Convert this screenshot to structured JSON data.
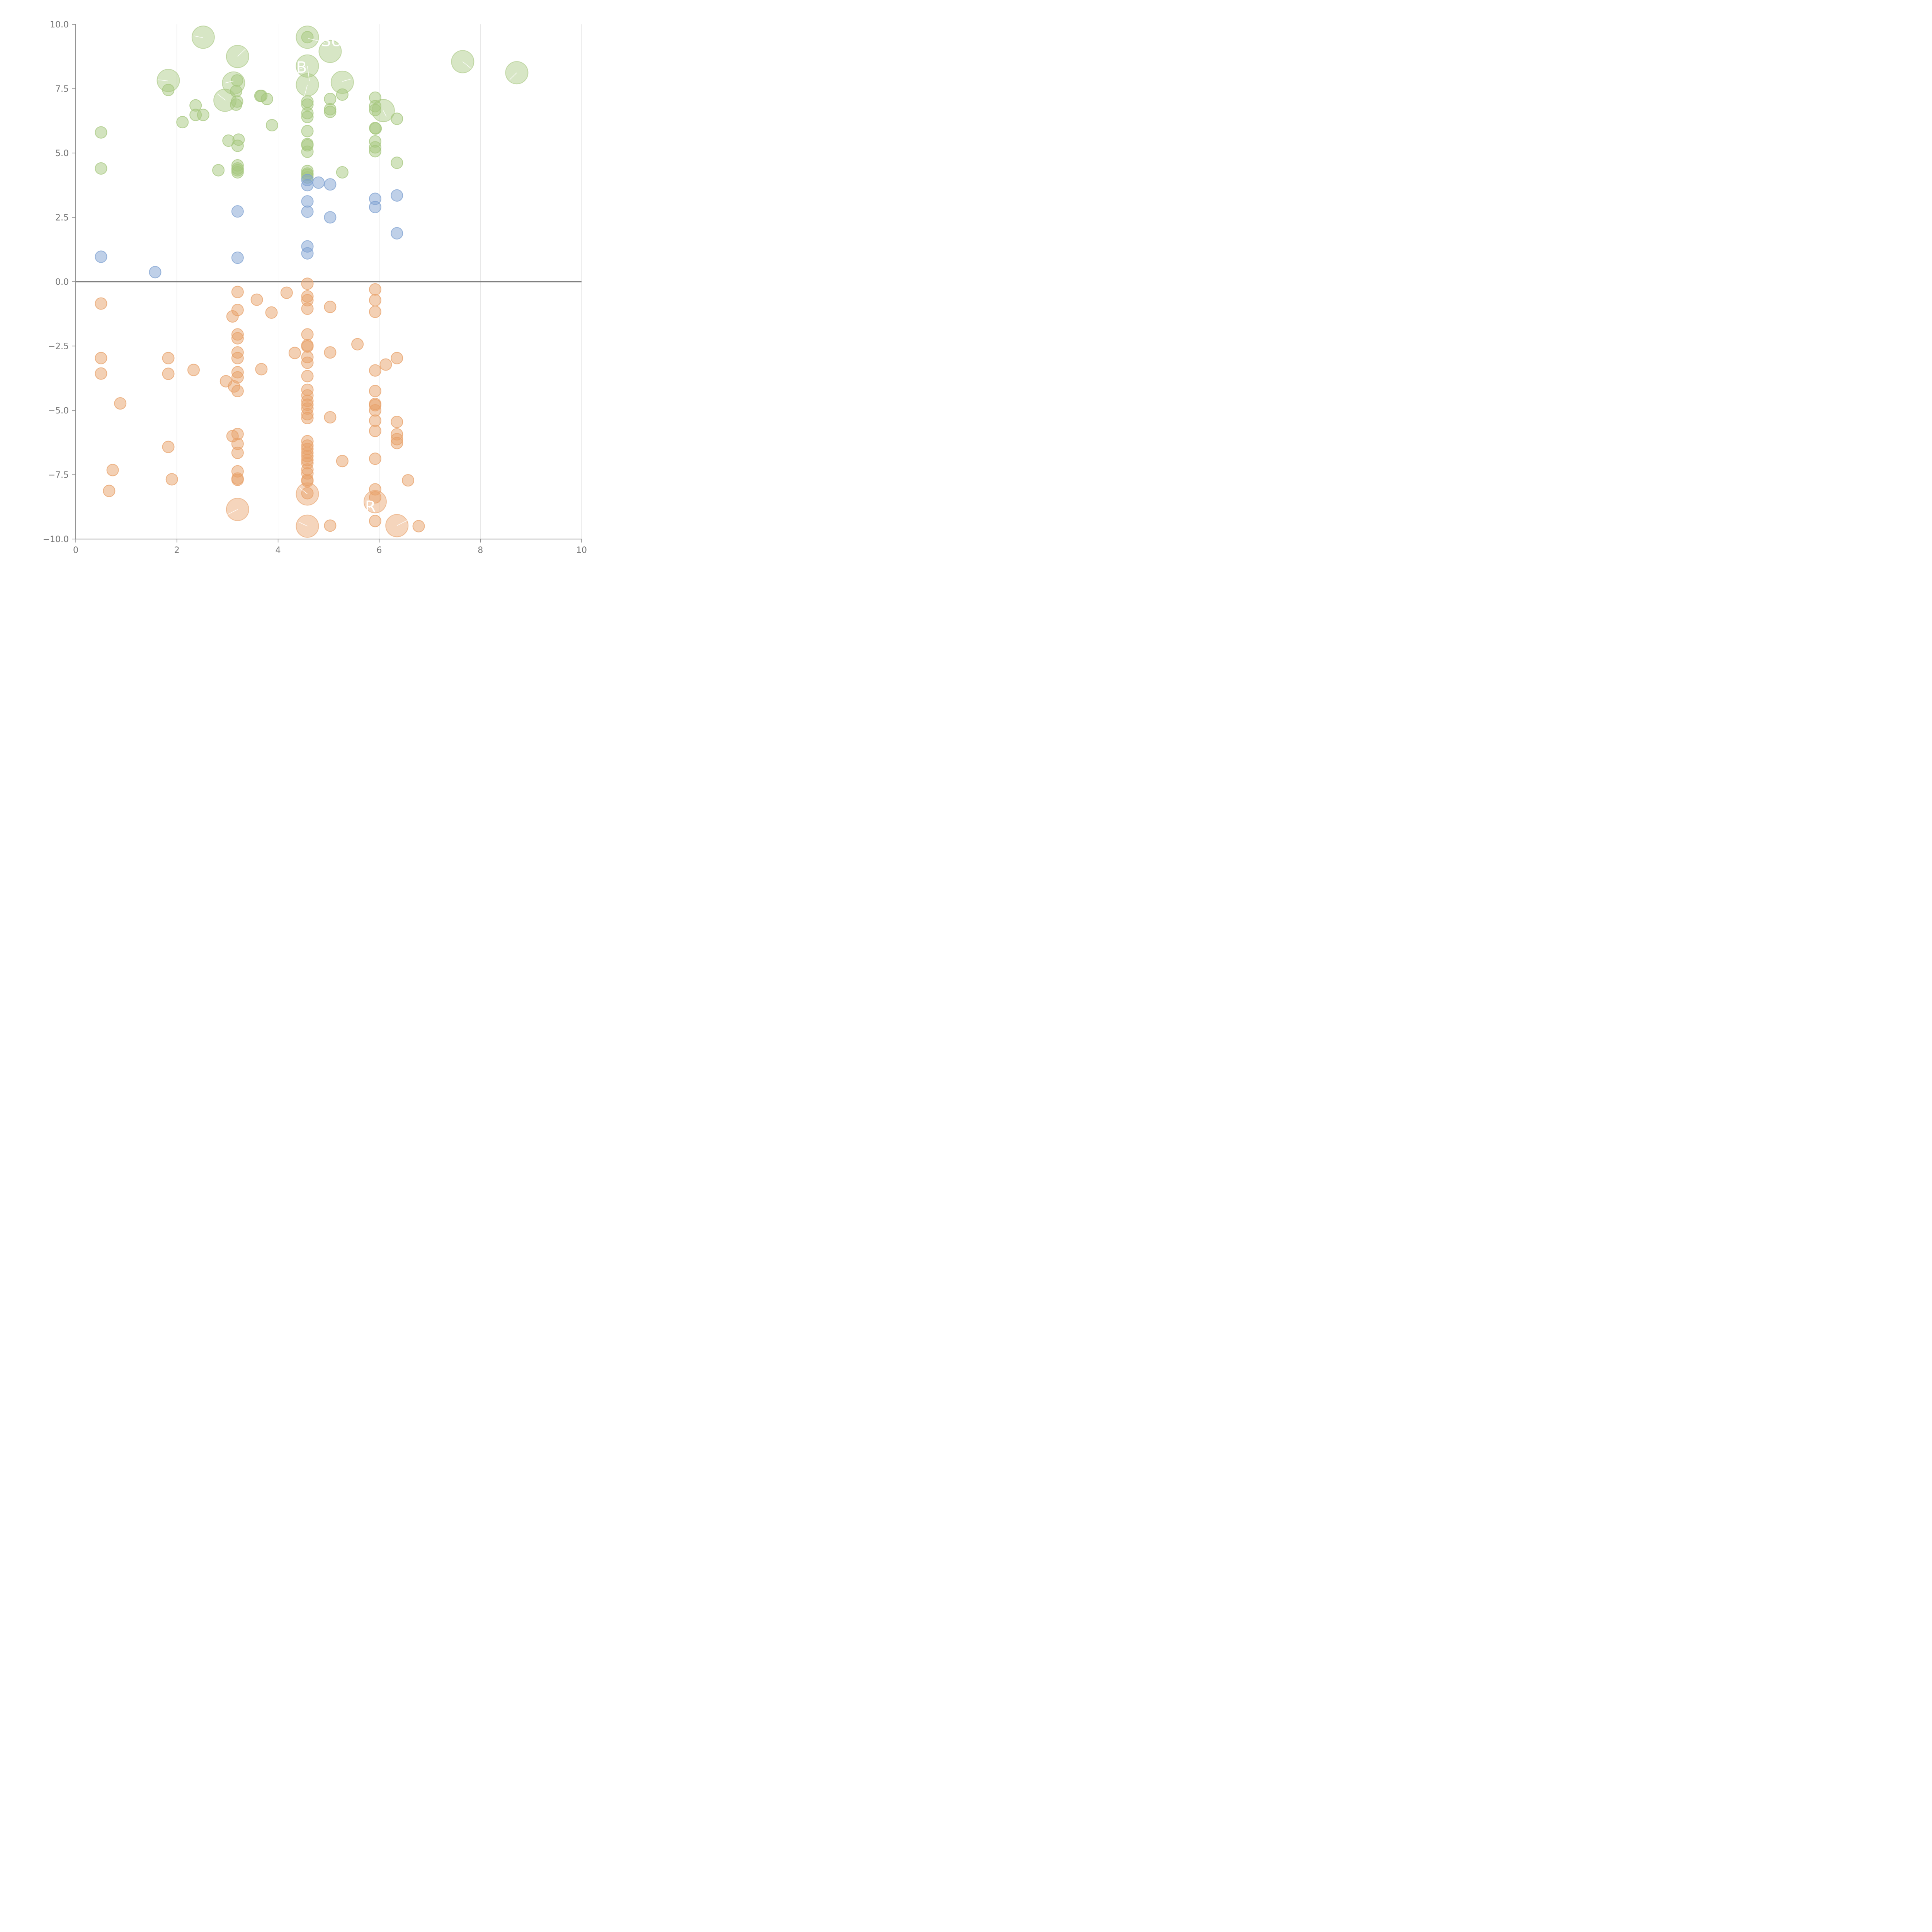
{
  "chart_data": {
    "type": "scatter",
    "title": "",
    "xlabel": "",
    "ylabel": "",
    "xlim": [
      0,
      10
    ],
    "ylim": [
      -10,
      10
    ],
    "x_ticks": [
      "0",
      "2",
      "4",
      "6",
      "8",
      "10"
    ],
    "y_ticks": [
      "−10.0",
      "−7.5",
      "−5.0",
      "−2.5",
      "0.0",
      "2.5",
      "5.0",
      "7.5",
      "10.0"
    ],
    "grid": "vertical",
    "zero_line": true,
    "colors": {
      "green": "#a6c77e",
      "blue": "#7fa2d1",
      "orange": "#e8a26a"
    },
    "series": [
      {
        "color": "green",
        "points": [
          [
            0.5,
            5.8
          ],
          [
            0.5,
            4.4
          ],
          [
            1.83,
            7.45
          ],
          [
            2.11,
            6.2
          ],
          [
            2.37,
            6.85
          ],
          [
            2.37,
            6.48
          ],
          [
            2.52,
            6.48
          ],
          [
            2.82,
            4.33
          ],
          [
            3.02,
            5.48
          ],
          [
            3.17,
            7.4
          ],
          [
            3.17,
            6.88
          ],
          [
            3.19,
            7.82
          ],
          [
            3.19,
            7.0
          ],
          [
            3.22,
            5.52
          ],
          [
            3.2,
            5.28
          ],
          [
            3.2,
            4.52
          ],
          [
            3.2,
            4.4
          ],
          [
            3.2,
            4.33
          ],
          [
            3.2,
            4.25
          ],
          [
            3.65,
            7.22
          ],
          [
            3.67,
            7.22
          ],
          [
            3.78,
            7.1
          ],
          [
            3.88,
            6.08
          ],
          [
            4.58,
            9.5
          ],
          [
            4.58,
            7.0
          ],
          [
            4.58,
            6.88
          ],
          [
            4.58,
            6.55
          ],
          [
            4.58,
            6.4
          ],
          [
            4.58,
            5.85
          ],
          [
            4.58,
            5.35
          ],
          [
            4.58,
            5.3
          ],
          [
            4.58,
            5.05
          ],
          [
            4.58,
            4.3
          ],
          [
            4.58,
            4.2
          ],
          [
            4.58,
            4.15
          ],
          [
            4.58,
            4.05
          ],
          [
            5.03,
            7.1
          ],
          [
            5.03,
            6.7
          ],
          [
            5.03,
            6.6
          ],
          [
            5.27,
            7.27
          ],
          [
            5.27,
            4.25
          ],
          [
            5.92,
            7.15
          ],
          [
            5.92,
            6.82
          ],
          [
            5.92,
            6.67
          ],
          [
            5.92,
            5.97
          ],
          [
            5.93,
            5.95
          ],
          [
            5.92,
            5.45
          ],
          [
            5.92,
            5.22
          ],
          [
            5.92,
            5.07
          ],
          [
            6.35,
            6.33
          ],
          [
            6.35,
            4.62
          ]
        ],
        "large_points": [
          [
            2.52,
            9.5
          ],
          [
            1.83,
            7.82
          ],
          [
            3.2,
            8.75
          ],
          [
            3.12,
            7.72
          ],
          [
            2.95,
            7.05
          ],
          [
            4.58,
            9.5
          ],
          [
            4.58,
            8.38
          ],
          [
            4.58,
            7.65
          ],
          [
            5.03,
            8.95
          ],
          [
            5.27,
            7.75
          ],
          [
            6.08,
            6.65
          ],
          [
            7.65,
            8.55
          ],
          [
            8.72,
            8.12
          ]
        ]
      },
      {
        "color": "blue",
        "points": [
          [
            0.5,
            0.97
          ],
          [
            1.57,
            0.37
          ],
          [
            3.2,
            2.73
          ],
          [
            3.2,
            0.93
          ],
          [
            4.58,
            3.95
          ],
          [
            4.58,
            3.75
          ],
          [
            4.8,
            3.85
          ],
          [
            5.03,
            3.78
          ],
          [
            4.58,
            3.12
          ],
          [
            4.58,
            2.72
          ],
          [
            5.03,
            2.5
          ],
          [
            5.92,
            3.22
          ],
          [
            5.92,
            2.9
          ],
          [
            6.35,
            3.35
          ],
          [
            6.35,
            1.88
          ],
          [
            4.58,
            1.37
          ],
          [
            4.58,
            1.1
          ]
        ],
        "large_points": []
      },
      {
        "color": "orange",
        "points": [
          [
            0.5,
            -0.85
          ],
          [
            0.5,
            -2.97
          ],
          [
            0.5,
            -3.57
          ],
          [
            0.88,
            -4.73
          ],
          [
            0.73,
            -7.32
          ],
          [
            0.66,
            -8.13
          ],
          [
            1.83,
            -2.97
          ],
          [
            1.83,
            -3.58
          ],
          [
            1.83,
            -6.42
          ],
          [
            1.9,
            -7.68
          ],
          [
            2.33,
            -3.43
          ],
          [
            2.97,
            -3.87
          ],
          [
            3.1,
            -1.35
          ],
          [
            3.1,
            -6.0
          ],
          [
            3.13,
            -4.07
          ],
          [
            3.2,
            -0.4
          ],
          [
            3.2,
            -1.1
          ],
          [
            3.2,
            -2.05
          ],
          [
            3.2,
            -2.2
          ],
          [
            3.2,
            -2.75
          ],
          [
            3.2,
            -2.97
          ],
          [
            3.2,
            -3.52
          ],
          [
            3.2,
            -3.72
          ],
          [
            3.2,
            -4.25
          ],
          [
            3.2,
            -5.92
          ],
          [
            3.2,
            -6.3
          ],
          [
            3.2,
            -6.65
          ],
          [
            3.2,
            -7.37
          ],
          [
            3.2,
            -7.65
          ],
          [
            3.2,
            -7.7
          ],
          [
            3.58,
            -0.7
          ],
          [
            3.67,
            -3.4
          ],
          [
            3.87,
            -1.2
          ],
          [
            4.17,
            -0.43
          ],
          [
            4.33,
            -2.77
          ],
          [
            4.58,
            -0.08
          ],
          [
            4.58,
            -0.57
          ],
          [
            4.58,
            -0.72
          ],
          [
            4.58,
            -1.05
          ],
          [
            4.58,
            -2.05
          ],
          [
            4.58,
            -2.47
          ],
          [
            4.58,
            -2.52
          ],
          [
            4.58,
            -2.93
          ],
          [
            4.58,
            -3.15
          ],
          [
            4.58,
            -3.67
          ],
          [
            4.58,
            -4.2
          ],
          [
            4.58,
            -4.42
          ],
          [
            4.58,
            -4.63
          ],
          [
            4.58,
            -4.78
          ],
          [
            4.58,
            -4.93
          ],
          [
            4.58,
            -5.15
          ],
          [
            4.58,
            -5.3
          ],
          [
            4.58,
            -6.2
          ],
          [
            4.58,
            -6.37
          ],
          [
            4.58,
            -6.5
          ],
          [
            4.58,
            -6.65
          ],
          [
            4.58,
            -6.78
          ],
          [
            4.58,
            -6.93
          ],
          [
            4.58,
            -7.05
          ],
          [
            4.58,
            -7.3
          ],
          [
            4.58,
            -7.45
          ],
          [
            4.58,
            -7.7
          ],
          [
            4.58,
            -7.75
          ],
          [
            4.58,
            -8.22
          ],
          [
            5.03,
            -0.98
          ],
          [
            5.03,
            -2.75
          ],
          [
            5.03,
            -5.27
          ],
          [
            5.03,
            -9.48
          ],
          [
            5.27,
            -6.97
          ],
          [
            5.57,
            -2.43
          ],
          [
            5.92,
            -0.3
          ],
          [
            5.92,
            -0.72
          ],
          [
            5.92,
            -1.17
          ],
          [
            5.92,
            -3.45
          ],
          [
            5.92,
            -4.25
          ],
          [
            5.92,
            -4.75
          ],
          [
            5.92,
            -4.8
          ],
          [
            5.92,
            -5.0
          ],
          [
            5.92,
            -5.4
          ],
          [
            5.92,
            -5.8
          ],
          [
            5.92,
            -6.88
          ],
          [
            5.92,
            -8.07
          ],
          [
            5.92,
            -8.38
          ],
          [
            5.92,
            -9.3
          ],
          [
            6.13,
            -3.22
          ],
          [
            6.35,
            -2.97
          ],
          [
            6.35,
            -5.45
          ],
          [
            6.35,
            -5.93
          ],
          [
            6.35,
            -6.12
          ],
          [
            6.35,
            -6.27
          ],
          [
            6.57,
            -7.72
          ],
          [
            6.78,
            -9.5
          ]
        ],
        "large_points": [
          [
            3.2,
            -8.85
          ],
          [
            4.58,
            -8.25
          ],
          [
            4.58,
            -9.5
          ],
          [
            5.92,
            -8.55
          ],
          [
            6.35,
            -9.48
          ]
        ]
      }
    ],
    "callouts": [
      {
        "text": "SU",
        "x": 4.85,
        "y": 9.15,
        "ax": 4.6,
        "ay": 9.45
      },
      {
        "text": "B",
        "x": 4.36,
        "y": 8.12,
        "ax": 4.55,
        "ay": 8.35
      },
      {
        "text": "R",
        "x": 5.72,
        "y": -8.95,
        "ax": 5.9,
        "ay": -8.55
      }
    ],
    "leaders": [
      [
        2.34,
        9.55,
        2.52,
        9.48
      ],
      [
        3.2,
        8.75,
        3.36,
        9.05
      ],
      [
        1.62,
        7.85,
        1.82,
        7.8
      ],
      [
        2.95,
        7.72,
        3.12,
        7.8
      ],
      [
        2.8,
        7.3,
        2.96,
        7.05
      ],
      [
        4.58,
        8.38,
        4.62,
        7.8
      ],
      [
        4.58,
        7.65,
        4.52,
        7.2
      ],
      [
        5.27,
        7.78,
        5.45,
        7.88
      ],
      [
        6.08,
        6.65,
        6.14,
        6.42
      ],
      [
        7.65,
        8.55,
        7.82,
        8.28
      ],
      [
        8.72,
        8.12,
        8.58,
        7.85
      ],
      [
        3.2,
        -8.85,
        3.0,
        -9.05
      ],
      [
        4.58,
        -8.25,
        4.42,
        -8.0
      ],
      [
        4.58,
        -9.5,
        4.42,
        -9.35
      ],
      [
        6.35,
        -9.48,
        6.55,
        -9.28
      ]
    ]
  }
}
